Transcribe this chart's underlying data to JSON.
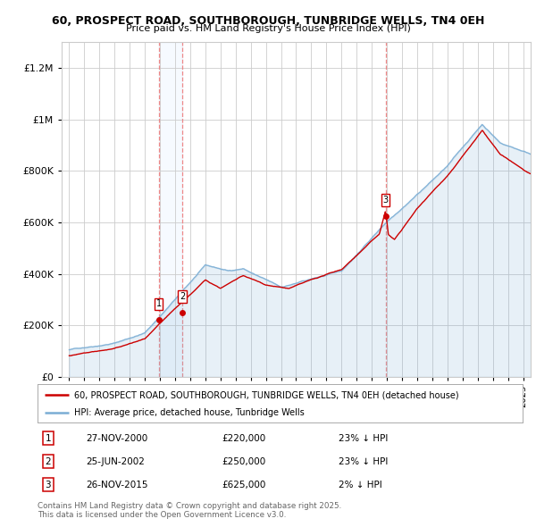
{
  "title1": "60, PROSPECT ROAD, SOUTHBOROUGH, TUNBRIDGE WELLS, TN4 0EH",
  "title2": "Price paid vs. HM Land Registry's House Price Index (HPI)",
  "transactions": [
    {
      "num": 1,
      "date": 2000.91,
      "price": 220000,
      "label": "27-NOV-2000",
      "pct": "23% ↓ HPI"
    },
    {
      "num": 2,
      "date": 2002.49,
      "price": 250000,
      "label": "25-JUN-2002",
      "pct": "23% ↓ HPI"
    },
    {
      "num": 3,
      "date": 2015.91,
      "price": 625000,
      "label": "26-NOV-2015",
      "pct": "2% ↓ HPI"
    }
  ],
  "legend_house": "60, PROSPECT ROAD, SOUTHBOROUGH, TUNBRIDGE WELLS, TN4 0EH (detached house)",
  "legend_hpi": "HPI: Average price, detached house, Tunbridge Wells",
  "footer": "Contains HM Land Registry data © Crown copyright and database right 2025.\nThis data is licensed under the Open Government Licence v3.0.",
  "house_color": "#cc0000",
  "hpi_color": "#7aadd4",
  "hpi_fill_color": "#ddeeff",
  "vline_color": "#ee8888",
  "vband_color": "#ddeeff",
  "background_color": "#ffffff",
  "grid_color": "#cccccc",
  "ylim": [
    0,
    1300000
  ],
  "xlim_start": 1994.5,
  "xlim_end": 2025.5
}
